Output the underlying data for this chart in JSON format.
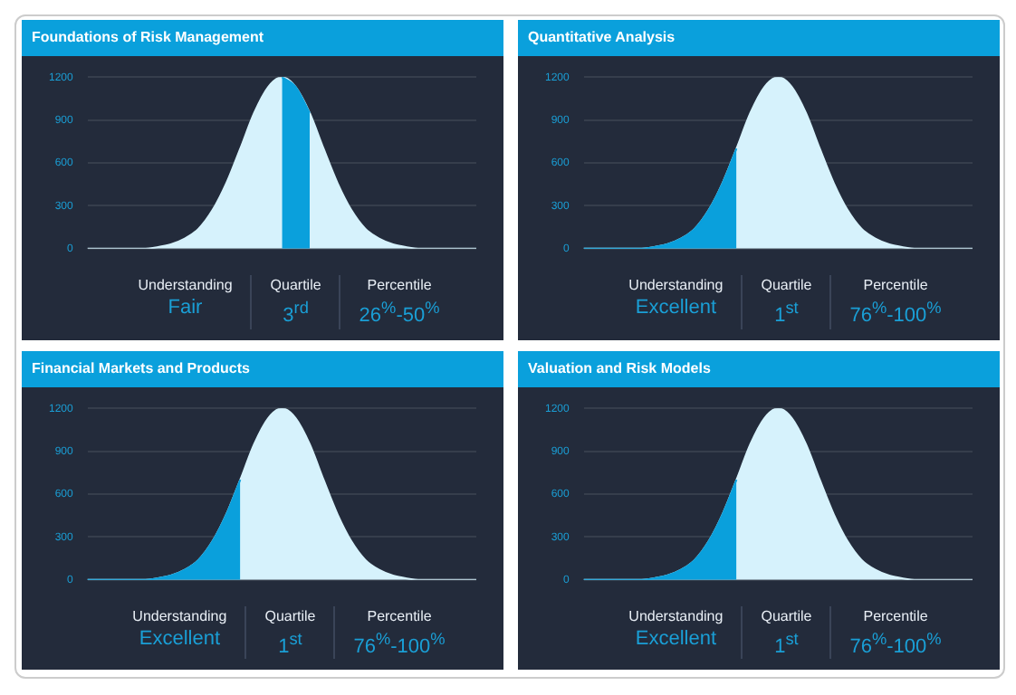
{
  "chart_data": [
    {
      "type": "area",
      "title": "Foundations of Risk Management",
      "categories": [
        null,
        null,
        null,
        null,
        null,
        null,
        null,
        null,
        null,
        null,
        null,
        null,
        null,
        null,
        null,
        null,
        null,
        null,
        null,
        null,
        null,
        null,
        null,
        null,
        null,
        null,
        null,
        null,
        null
      ],
      "series": [
        {
          "color": "#d6f2fc",
          "values": [
            0,
            0,
            0,
            0,
            0,
            10,
            30,
            70,
            140,
            270,
            460,
            700,
            950,
            1130,
            1200,
            1130,
            950,
            700,
            460,
            270,
            140,
            70,
            30,
            10,
            0,
            0,
            0,
            0,
            0
          ]
        },
        {
          "color": "#0aa0dc",
          "values": [
            null,
            null,
            null,
            null,
            null,
            null,
            null,
            null,
            null,
            null,
            null,
            null,
            null,
            null,
            1200,
            1130,
            950,
            null,
            null,
            null,
            null,
            null,
            null,
            null,
            null,
            null,
            null,
            null,
            null
          ]
        }
      ],
      "ylim": [
        0,
        1200
      ],
      "yticks": [
        0,
        300,
        600,
        900,
        1200
      ],
      "grid": "y",
      "tick_labels": "y",
      "legend": false,
      "annotations": [
        "Understanding",
        "Fair",
        "Quartile",
        "3$^{rd}$",
        "Percentile",
        "26$^{%}$-50$^{%}$"
      ]
    },
    {
      "type": "area",
      "title": "Quantitative Analysis",
      "categories": [
        null,
        null,
        null,
        null,
        null,
        null,
        null,
        null,
        null,
        null,
        null,
        null,
        null,
        null,
        null,
        null,
        null,
        null,
        null,
        null,
        null,
        null,
        null,
        null,
        null,
        null,
        null,
        null,
        null
      ],
      "series": [
        {
          "color": "#d6f2fc",
          "values": [
            0,
            0,
            0,
            0,
            0,
            10,
            30,
            70,
            140,
            270,
            460,
            700,
            950,
            1130,
            1200,
            1130,
            950,
            700,
            460,
            270,
            140,
            70,
            30,
            10,
            0,
            0,
            0,
            0,
            0
          ]
        },
        {
          "color": "#0aa0dc",
          "values": [
            0,
            0,
            0,
            0,
            0,
            10,
            30,
            70,
            140,
            270,
            460,
            700,
            null,
            null,
            null,
            null,
            null,
            null,
            null,
            null,
            null,
            null,
            null,
            null,
            null,
            null,
            null,
            null,
            null
          ]
        }
      ],
      "ylim": [
        0,
        1200
      ],
      "yticks": [
        0,
        300,
        600,
        900,
        1200
      ],
      "grid": "y",
      "tick_labels": "y",
      "legend": false,
      "annotations": [
        "Understanding",
        "Excellent",
        "Quartile",
        "1$^{st}$",
        "Percentile",
        "76$^{%}$-100$^{%}$"
      ]
    },
    {
      "type": "area",
      "title": "Financial Markets and Products",
      "categories": [
        null,
        null,
        null,
        null,
        null,
        null,
        null,
        null,
        null,
        null,
        null,
        null,
        null,
        null,
        null,
        null,
        null,
        null,
        null,
        null,
        null,
        null,
        null,
        null,
        null,
        null,
        null,
        null,
        null
      ],
      "series": [
        {
          "color": "#d6f2fc",
          "values": [
            0,
            0,
            0,
            0,
            0,
            10,
            30,
            70,
            140,
            270,
            460,
            700,
            950,
            1130,
            1200,
            1130,
            950,
            700,
            460,
            270,
            140,
            70,
            30,
            10,
            0,
            0,
            0,
            0,
            0
          ]
        },
        {
          "color": "#0aa0dc",
          "values": [
            0,
            0,
            0,
            0,
            0,
            10,
            30,
            70,
            140,
            270,
            460,
            700,
            null,
            null,
            null,
            null,
            null,
            null,
            null,
            null,
            null,
            null,
            null,
            null,
            null,
            null,
            null,
            null,
            null
          ]
        }
      ],
      "ylim": [
        0,
        1200
      ],
      "yticks": [
        0,
        300,
        600,
        900,
        1200
      ],
      "grid": "y",
      "tick_labels": "y",
      "legend": false,
      "annotations": [
        "Understanding",
        "Excellent",
        "Quartile",
        "1$^{st}$",
        "Percentile",
        "76$^{%}$-100$^{%}$"
      ]
    },
    {
      "type": "area",
      "title": "Valuation and Risk Models",
      "categories": [
        null,
        null,
        null,
        null,
        null,
        null,
        null,
        null,
        null,
        null,
        null,
        null,
        null,
        null,
        null,
        null,
        null,
        null,
        null,
        null,
        null,
        null,
        null,
        null,
        null,
        null,
        null,
        null,
        null
      ],
      "series": [
        {
          "color": "#d6f2fc",
          "values": [
            0,
            0,
            0,
            0,
            0,
            10,
            30,
            70,
            140,
            270,
            460,
            700,
            950,
            1130,
            1200,
            1130,
            950,
            700,
            460,
            270,
            140,
            70,
            30,
            10,
            0,
            0,
            0,
            0,
            0
          ]
        },
        {
          "color": "#0aa0dc",
          "values": [
            0,
            0,
            0,
            0,
            0,
            10,
            30,
            70,
            140,
            270,
            460,
            700,
            null,
            null,
            null,
            null,
            null,
            null,
            null,
            null,
            null,
            null,
            null,
            null,
            null,
            null,
            null,
            null,
            null
          ]
        }
      ],
      "ylim": [
        0,
        1200
      ],
      "yticks": [
        0,
        300,
        600,
        900,
        1200
      ],
      "grid": "y",
      "tick_labels": "y",
      "legend": false,
      "annotations": [
        "Understanding",
        "Excellent",
        "Quartile",
        "1$^{st}$",
        "Percentile",
        "76$^{%}$-100$^{%}$"
      ]
    }
  ]
}
